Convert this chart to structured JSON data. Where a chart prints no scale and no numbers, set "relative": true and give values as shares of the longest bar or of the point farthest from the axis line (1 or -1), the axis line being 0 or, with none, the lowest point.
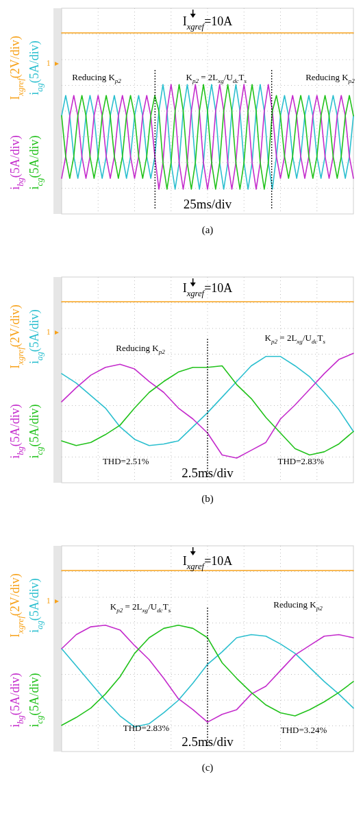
{
  "chart_data": [
    {
      "type": "line",
      "title": "(a)",
      "xlabel": "25ms/div",
      "relative": true,
      "grid": true,
      "annotations": [
        "I$_{xgref}$=10A",
        "1",
        "Reducing K$_{p2}$",
        "K$_{p2}$ = 2L$_{xg}$/U$_{dc}$T$_{s}$",
        "Reducing K$_{p2}$"
      ],
      "categories": [
        null,
        null,
        null,
        null,
        null,
        null,
        null,
        null,
        null,
        null,
        null,
        null,
        null,
        null,
        null,
        null,
        null,
        null,
        null,
        null,
        null,
        null,
        null,
        null,
        null,
        null,
        null,
        null,
        null,
        null,
        null,
        null,
        null,
        null,
        null,
        null,
        null,
        null,
        null,
        null,
        null,
        null,
        null,
        null,
        null,
        null,
        null,
        null,
        null,
        null,
        null,
        null,
        null,
        null,
        null,
        null,
        null,
        null,
        null,
        null,
        null,
        null,
        null,
        null,
        null,
        null,
        null,
        null,
        null,
        null,
        null,
        null,
        null
      ],
      "series": [
        {
          "name": "I$_{xgref}$(2V/div)",
          "color": "#f7a21b",
          "values": [
            1,
            1,
            1,
            1,
            1,
            1,
            1,
            1,
            1,
            1,
            1,
            1,
            1,
            1,
            1,
            1,
            1,
            1,
            1,
            1,
            1,
            1,
            1,
            1,
            1,
            1,
            1,
            1,
            1,
            1,
            1,
            1,
            1,
            1,
            1,
            1,
            1,
            1,
            1,
            1,
            1,
            1,
            1,
            1,
            1,
            1,
            1,
            1,
            1,
            1,
            1,
            1,
            1,
            1,
            1,
            1,
            1,
            1,
            1,
            1,
            1,
            1,
            1,
            1,
            1,
            1,
            1,
            1,
            1,
            1,
            1,
            1,
            1
          ]
        },
        {
          "name": "i$_{ag}$(5A/div)",
          "color": "#2bbfcf",
          "values": [
            0.47,
            0.6,
            0.47,
            0.21,
            0.07,
            0.21,
            0.47,
            0.6,
            0.47,
            0.21,
            0.07,
            0.21,
            0.47,
            0.6,
            0.47,
            0.21,
            0.07,
            0.21,
            0.47,
            0.6,
            0.47,
            0.21,
            0.07,
            0.21,
            0.5,
            0.67,
            0.5,
            0.17,
            0,
            0.17,
            0.5,
            0.67,
            0.5,
            0.17,
            0,
            0.17,
            0.5,
            0.67,
            0.5,
            0.17,
            0,
            0.17,
            0.5,
            0.67,
            0.5,
            0.17,
            0,
            0.17,
            0.5,
            0.67,
            0.5,
            0.17,
            0,
            0.21,
            0.47,
            0.6,
            0.47,
            0.21,
            0.07,
            0.21,
            0.47,
            0.6,
            0.47,
            0.21,
            0.07,
            0.21,
            0.47,
            0.6,
            0.47,
            0.21,
            0.07,
            0.21,
            0.47
          ]
        },
        {
          "name": "i$_{bg}$(5A/div)",
          "color": "#c42bcc",
          "values": [
            0.07,
            0.21,
            0.47,
            0.6,
            0.47,
            0.21,
            0.07,
            0.21,
            0.47,
            0.6,
            0.47,
            0.21,
            0.07,
            0.21,
            0.47,
            0.6,
            0.47,
            0.21,
            0.07,
            0.21,
            0.47,
            0.6,
            0.47,
            0.21,
            0,
            0.17,
            0.5,
            0.67,
            0.5,
            0.17,
            0,
            0.17,
            0.5,
            0.67,
            0.5,
            0.17,
            0,
            0.17,
            0.5,
            0.67,
            0.5,
            0.17,
            0,
            0.17,
            0.5,
            0.67,
            0.5,
            0.17,
            0,
            0.17,
            0.5,
            0.67,
            0.5,
            0.21,
            0.07,
            0.21,
            0.47,
            0.6,
            0.47,
            0.21,
            0.07,
            0.21,
            0.47,
            0.6,
            0.47,
            0.21,
            0.07,
            0.21,
            0.47,
            0.6,
            0.47,
            0.21,
            0.07
          ]
        },
        {
          "name": "i$_{cg}$(5A/div)",
          "color": "#21c21b",
          "values": [
            0.47,
            0.21,
            0.07,
            0.21,
            0.47,
            0.6,
            0.47,
            0.21,
            0.07,
            0.21,
            0.47,
            0.6,
            0.47,
            0.21,
            0.07,
            0.21,
            0.47,
            0.6,
            0.47,
            0.21,
            0.07,
            0.21,
            0.47,
            0.6,
            0.5,
            0.17,
            0,
            0.17,
            0.5,
            0.67,
            0.5,
            0.17,
            0,
            0.17,
            0.5,
            0.67,
            0.5,
            0.17,
            0,
            0.17,
            0.5,
            0.67,
            0.5,
            0.17,
            0,
            0.17,
            0.5,
            0.67,
            0.5,
            0.17,
            0,
            0.17,
            0.5,
            0.6,
            0.47,
            0.21,
            0.07,
            0.21,
            0.47,
            0.6,
            0.47,
            0.21,
            0.07,
            0.21,
            0.47,
            0.6,
            0.47,
            0.21,
            0.07,
            0.21,
            0.47,
            0.6,
            0.47
          ]
        }
      ]
    },
    {
      "type": "line",
      "title": "(b)",
      "xlabel": "2.5ms/div",
      "relative": true,
      "grid": true,
      "annotations": [
        "I$_{xgref}$=10A",
        "1",
        "Reducing K$_{p2}$",
        "K$_{p2}$ = 2L$_{xg}$/U$_{dc}$T$_{s}$",
        "THD=2.51%",
        "THD=2.83%"
      ],
      "categories": [
        null,
        null,
        null,
        null,
        null,
        null,
        null,
        null,
        null,
        null,
        null,
        null,
        null,
        null,
        null,
        null,
        null,
        null,
        null,
        null,
        null
      ],
      "series": [
        {
          "name": "I$_{xgref}$(2V/div)",
          "color": "#f7a21b",
          "values": [
            1,
            1,
            1,
            1,
            1,
            1,
            1,
            1,
            1,
            1,
            1,
            1,
            1,
            1,
            1,
            1,
            1,
            1,
            1,
            1,
            1
          ]
        },
        {
          "name": "i$_{ag}$(5A/div)",
          "color": "#2bbfcf",
          "values": [
            0.54,
            0.48,
            0.4,
            0.32,
            0.2,
            0.12,
            0.08,
            0.09,
            0.11,
            0.2,
            0.29,
            0.39,
            0.49,
            0.59,
            0.65,
            0.65,
            0.59,
            0.52,
            0.42,
            0.31,
            0.17
          ]
        },
        {
          "name": "i$_{bg}$(5A/div)",
          "color": "#c42bcc",
          "values": [
            0.36,
            0.45,
            0.53,
            0.58,
            0.6,
            0.57,
            0.49,
            0.42,
            0.32,
            0.25,
            0.16,
            0.02,
            0,
            0.05,
            0.1,
            0.25,
            0.34,
            0.44,
            0.54,
            0.63,
            0.67
          ]
        },
        {
          "name": "i$_{cg}$(5A/div)",
          "color": "#21c21b",
          "values": [
            0.11,
            0.08,
            0.1,
            0.15,
            0.21,
            0.32,
            0.42,
            0.49,
            0.55,
            0.58,
            0.58,
            0.59,
            0.47,
            0.38,
            0.26,
            0.16,
            0.06,
            0.02,
            0.04,
            0.09,
            0.17
          ]
        }
      ]
    },
    {
      "type": "line",
      "title": "(c)",
      "xlabel": "2.5ms/div",
      "relative": true,
      "grid": true,
      "annotations": [
        "I$_{xgref}$=10A",
        "1",
        "K$_{p2}$ = 2L$_{xg}$/U$_{dc}$T$_{s}$",
        "Reducing K$_{p2}$",
        "THD=2.83%",
        "THD=3.24%"
      ],
      "categories": [
        null,
        null,
        null,
        null,
        null,
        null,
        null,
        null,
        null,
        null,
        null,
        null,
        null,
        null,
        null,
        null,
        null,
        null,
        null,
        null,
        null
      ],
      "series": [
        {
          "name": "I$_{xgref}$(2V/div)",
          "color": "#f7a21b",
          "values": [
            1,
            1,
            1,
            1,
            1,
            1,
            1,
            1,
            1,
            1,
            1,
            1,
            1,
            1,
            1,
            1,
            1,
            1,
            1,
            1,
            1
          ]
        },
        {
          "name": "i$_{ag}$(5A/div)",
          "color": "#2bbfcf",
          "values": [
            0.5,
            0.39,
            0.28,
            0.17,
            0.07,
            0,
            0.02,
            0.09,
            0.17,
            0.28,
            0.4,
            0.48,
            0.57,
            0.59,
            0.58,
            0.53,
            0.47,
            0.38,
            0.29,
            0.21,
            0.12
          ]
        },
        {
          "name": "i$_{bg}$(5A/div)",
          "color": "#c42bcc",
          "values": [
            0.5,
            0.59,
            0.64,
            0.65,
            0.62,
            0.52,
            0.43,
            0.31,
            0.18,
            0.11,
            0.03,
            0.08,
            0.11,
            0.21,
            0.26,
            0.36,
            0.46,
            0.52,
            0.58,
            0.59,
            0.57
          ]
        },
        {
          "name": "i$_{cg}$(5A/div)",
          "color": "#21c21b",
          "values": [
            0.01,
            0.06,
            0.12,
            0.21,
            0.32,
            0.47,
            0.57,
            0.63,
            0.65,
            0.63,
            0.57,
            0.41,
            0.31,
            0.22,
            0.14,
            0.09,
            0.07,
            0.11,
            0.16,
            0.22,
            0.29
          ]
        }
      ]
    }
  ]
}
